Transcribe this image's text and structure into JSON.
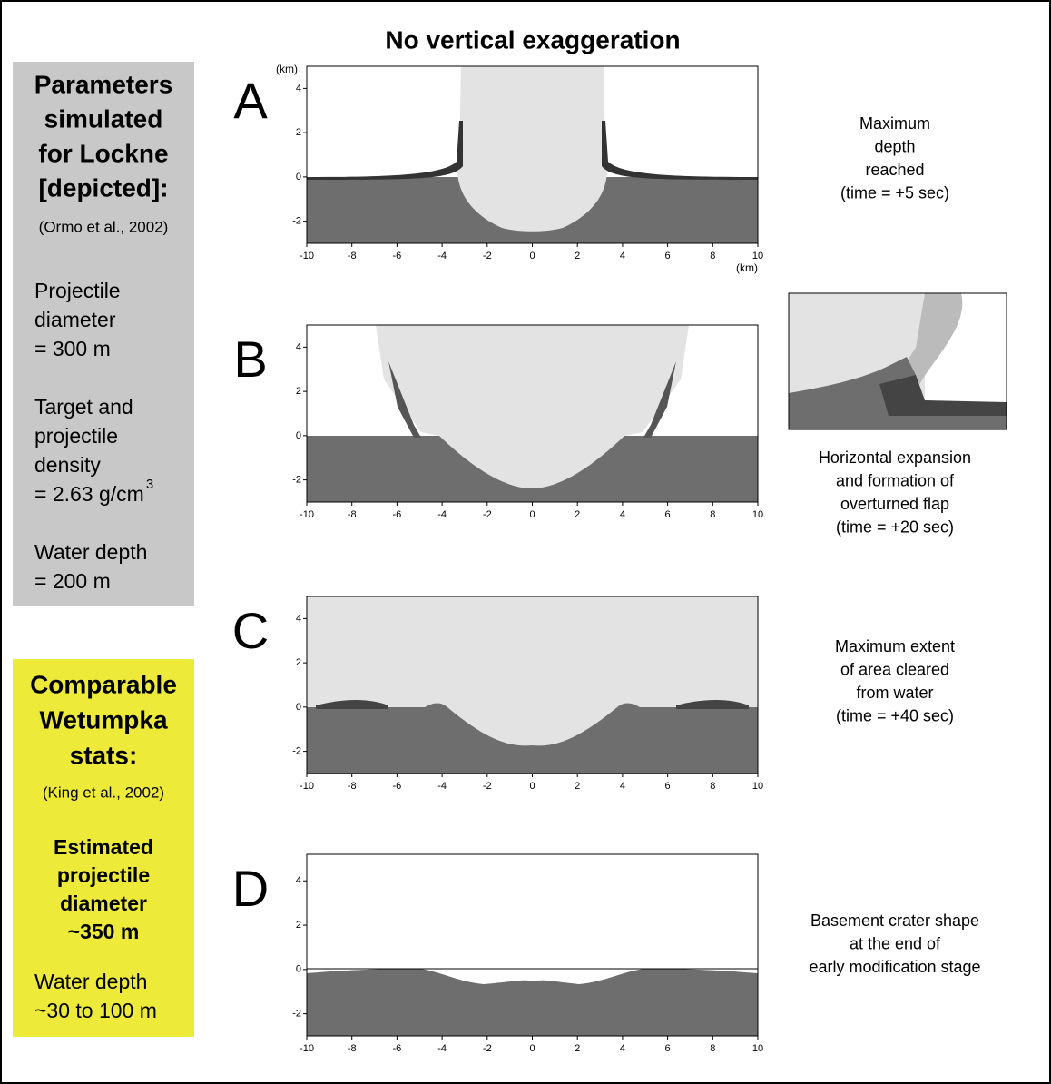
{
  "title": "No vertical exaggeration",
  "parameters": {
    "heading": [
      "Parameters",
      "simulated",
      "for Lockne",
      "[depicted]:"
    ],
    "source": "(Ormo et al., 2002)",
    "items": [
      {
        "lines": [
          "Projectile",
          "diameter",
          "= 300 m"
        ]
      },
      {
        "lines": [
          "Target and",
          "projectile",
          "density",
          "= 2.63 g/cm"
        ],
        "superscript": "3"
      },
      {
        "lines": [
          "Water depth",
          "= 200 m"
        ]
      }
    ]
  },
  "wetumpka": {
    "heading": [
      "Comparable",
      "Wetumpka",
      "stats:"
    ],
    "source": "(King et al., 2002)",
    "estimate": [
      "Estimated",
      "projectile",
      "diameter",
      "~350 m"
    ],
    "water": [
      "Water depth",
      "~30 to 100 m"
    ]
  },
  "panels": [
    {
      "letter": "A",
      "caption": [
        "Maximum",
        "depth",
        "reached",
        "(time = +5 sec)"
      ],
      "x_unit": "(km)",
      "y_unit": "(km)",
      "xlim": [
        -10,
        10
      ],
      "ylim": [
        -3,
        5
      ],
      "xticks": [
        -10,
        -8,
        -6,
        -4,
        -2,
        0,
        2,
        4,
        6,
        8,
        10
      ],
      "yticks": [
        -2,
        0,
        2,
        4
      ]
    },
    {
      "letter": "B",
      "caption": [
        "Horizontal expansion",
        "and formation of",
        "overturned flap",
        "(time = +20 sec)"
      ],
      "xlim": [
        -10,
        10
      ],
      "ylim": [
        -3,
        5
      ],
      "xticks": [
        -10,
        -8,
        -6,
        -4,
        -2,
        0,
        2,
        4,
        6,
        8,
        10
      ],
      "yticks": [
        -2,
        0,
        2,
        4
      ]
    },
    {
      "letter": "C",
      "caption": [
        "Maximum extent",
        "of area cleared",
        "from water",
        "(time = +40 sec)"
      ],
      "xlim": [
        -10,
        10
      ],
      "ylim": [
        -3,
        5
      ],
      "xticks": [
        -10,
        -8,
        -6,
        -4,
        -2,
        0,
        2,
        4,
        6,
        8,
        10
      ],
      "yticks": [
        -2,
        0,
        2,
        4
      ]
    },
    {
      "letter": "D",
      "caption": [
        "Basement crater shape",
        "at the end of",
        "early modification stage"
      ],
      "xlim": [
        -10,
        10
      ],
      "ylim": [
        -3,
        5.2
      ],
      "xticks": [
        -10,
        -8,
        -6,
        -4,
        -2,
        0,
        2,
        4,
        6,
        8,
        10
      ],
      "yticks": [
        -2,
        0,
        2,
        4
      ]
    }
  ]
}
